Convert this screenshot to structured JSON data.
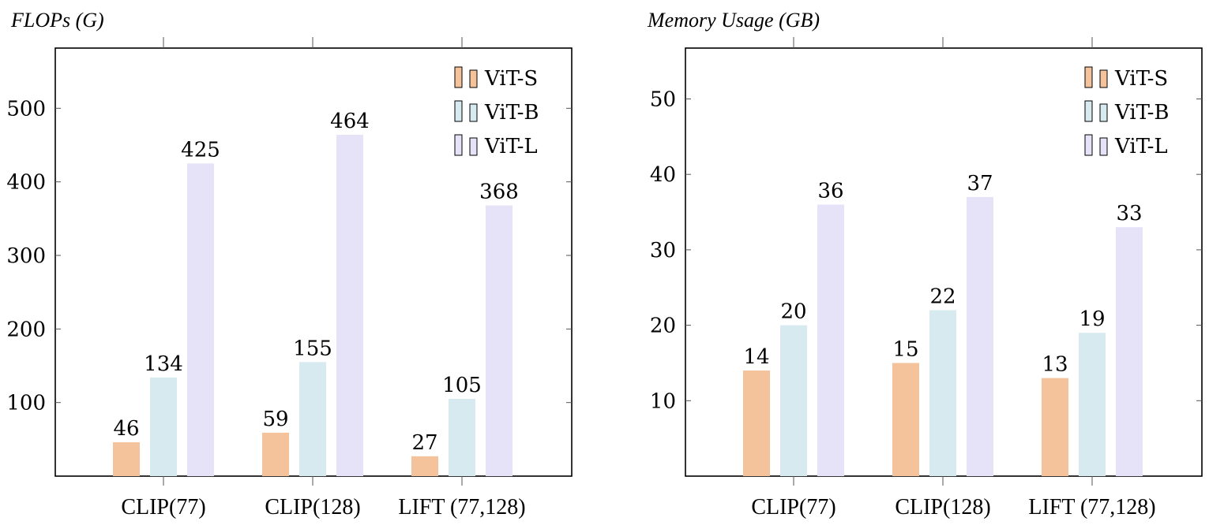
{
  "chart_data": [
    {
      "type": "bar",
      "title": "FLOPs (G)",
      "categories": [
        "CLIP(77)",
        "CLIP(128)",
        "LIFT (77,128)"
      ],
      "series": [
        {
          "name": "ViT-S",
          "color": "#f4c39c",
          "values": [
            46,
            59,
            27
          ]
        },
        {
          "name": "ViT-B",
          "color": "#d6eaf0",
          "values": [
            134,
            155,
            105
          ]
        },
        {
          "name": "ViT-L",
          "color": "#e6e2f7",
          "values": [
            425,
            464,
            368
          ]
        }
      ],
      "yticks": [
        100,
        200,
        300,
        400,
        500
      ],
      "ylim": [
        0,
        500
      ],
      "legend_position": "top-right",
      "grid": false
    },
    {
      "type": "bar",
      "title": "Memory Usage (GB)",
      "categories": [
        "CLIP(77)",
        "CLIP(128)",
        "LIFT (77,128)"
      ],
      "series": [
        {
          "name": "ViT-S",
          "color": "#f4c39c",
          "values": [
            14,
            15,
            13
          ]
        },
        {
          "name": "ViT-B",
          "color": "#d6eaf0",
          "values": [
            20,
            22,
            19
          ]
        },
        {
          "name": "ViT-L",
          "color": "#e6e2f7",
          "values": [
            36,
            37,
            33
          ]
        }
      ],
      "yticks": [
        10,
        20,
        30,
        40,
        50
      ],
      "ylim": [
        0,
        50
      ],
      "legend_position": "top-right",
      "grid": false
    }
  ]
}
